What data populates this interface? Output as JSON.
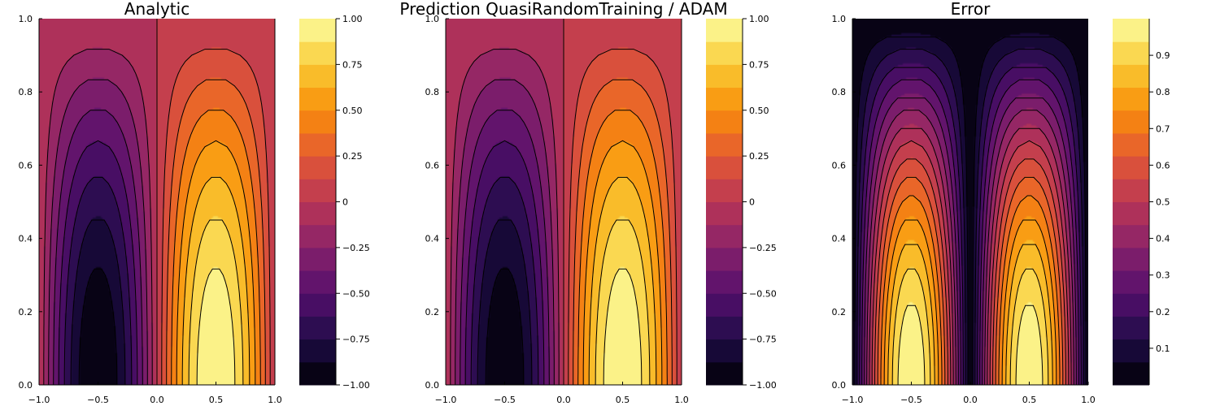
{
  "colors": {
    "inferno_stops": [
      "#000004",
      "#1f0c48",
      "#550f6d",
      "#88226a",
      "#ba3655",
      "#e35933",
      "#f98e09",
      "#f9cb35",
      "#fcffa4"
    ],
    "contour_line": "#000000",
    "axis": "#000000"
  },
  "chart_data": [
    {
      "type": "heatmap",
      "subtype": "filled-contour",
      "title": "Analytic",
      "xlabel": "",
      "ylabel": "",
      "xlim": [
        -1.0,
        1.0
      ],
      "ylim": [
        0.0,
        1.0
      ],
      "x_ticks": [
        "−1.0",
        "−0.5",
        "0.0",
        "0.5",
        "1.0"
      ],
      "x_tick_values": [
        -1.0,
        -0.5,
        0.0,
        0.5,
        1.0
      ],
      "y_ticks": [
        "0.0",
        "0.2",
        "0.4",
        "0.6",
        "0.8",
        "1.0"
      ],
      "y_tick_values": [
        0.0,
        0.2,
        0.4,
        0.6,
        0.8,
        1.0
      ],
      "field": "sin(pi*x)*cos(pi*y/2)",
      "clim": [
        -1.0,
        1.0
      ],
      "levels": 16,
      "colorbar_ticks": [
        "−1.00",
        "−0.75",
        "−0.50",
        "−0.25",
        "0",
        "0.25",
        "0.50",
        "0.75",
        "1.00"
      ],
      "colorbar_tick_values": [
        -1.0,
        -0.75,
        -0.5,
        -0.25,
        0.0,
        0.25,
        0.5,
        0.75,
        1.0
      ],
      "legend": "none"
    },
    {
      "type": "heatmap",
      "subtype": "filled-contour",
      "title": "Prediction QuasiRandomTraining / ADAM",
      "xlabel": "",
      "ylabel": "",
      "xlim": [
        -1.0,
        1.0
      ],
      "ylim": [
        0.0,
        1.0
      ],
      "x_ticks": [
        "−1.0",
        "−0.5",
        "0.0",
        "0.5",
        "1.0"
      ],
      "x_tick_values": [
        -1.0,
        -0.5,
        0.0,
        0.5,
        1.0
      ],
      "y_ticks": [
        "0.0",
        "0.2",
        "0.4",
        "0.6",
        "0.8",
        "1.0"
      ],
      "y_tick_values": [
        0.0,
        0.2,
        0.4,
        0.6,
        0.8,
        1.0
      ],
      "field": "sin(pi*x)*cos(pi*y/2)",
      "clim": [
        -1.0,
        1.0
      ],
      "levels": 16,
      "colorbar_ticks": [
        "−1.00",
        "−0.75",
        "−0.50",
        "−0.25",
        "0",
        "0.25",
        "0.50",
        "0.75",
        "1.00"
      ],
      "colorbar_tick_values": [
        -1.0,
        -0.75,
        -0.5,
        -0.25,
        0.0,
        0.25,
        0.5,
        0.75,
        1.0
      ],
      "legend": "none"
    },
    {
      "type": "heatmap",
      "subtype": "filled-contour",
      "title": "Error",
      "xlabel": "",
      "ylabel": "",
      "xlim": [
        -1.0,
        1.0
      ],
      "ylim": [
        0.0,
        1.0
      ],
      "x_ticks": [
        "−1.0",
        "−0.5",
        "0.0",
        "0.5",
        "1.0"
      ],
      "x_tick_values": [
        -1.0,
        -0.5,
        0.0,
        0.5,
        1.0
      ],
      "y_ticks": [
        "0.0",
        "0.2",
        "0.4",
        "0.6",
        "0.8",
        "1.0"
      ],
      "y_tick_values": [
        0.0,
        0.2,
        0.4,
        0.6,
        0.8,
        1.0
      ],
      "field": "|sin(pi*x)|*cos(pi*y/2)",
      "clim": [
        0.0,
        1.0
      ],
      "levels": 16,
      "colorbar_ticks": [
        "0.1",
        "0.2",
        "0.3",
        "0.4",
        "0.5",
        "0.6",
        "0.7",
        "0.8",
        "0.9"
      ],
      "colorbar_tick_values": [
        0.1,
        0.2,
        0.3,
        0.4,
        0.5,
        0.6,
        0.7,
        0.8,
        0.9
      ],
      "legend": "none"
    }
  ]
}
